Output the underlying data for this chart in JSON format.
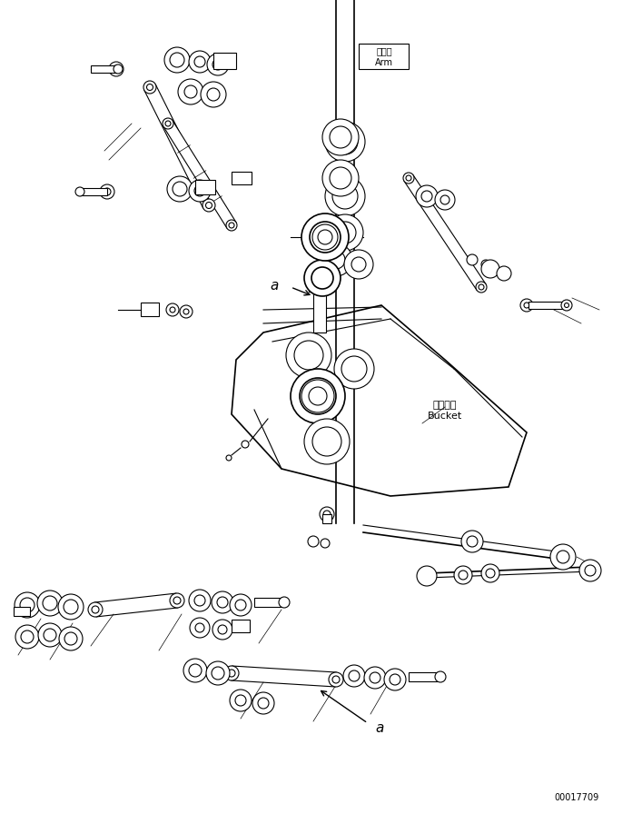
{
  "bg_color": "#ffffff",
  "line_color": "#000000",
  "line_width": 0.8,
  "thin_line": 0.5,
  "thick_line": 1.2,
  "fig_width": 7.07,
  "fig_height": 8.96,
  "dpi": 100,
  "part_number": "00017709",
  "label_arm_jp": "アーム",
  "label_arm_en": "Arm",
  "label_bucket_jp": "バケット",
  "label_bucket_en": "Bucket",
  "label_a": "a"
}
